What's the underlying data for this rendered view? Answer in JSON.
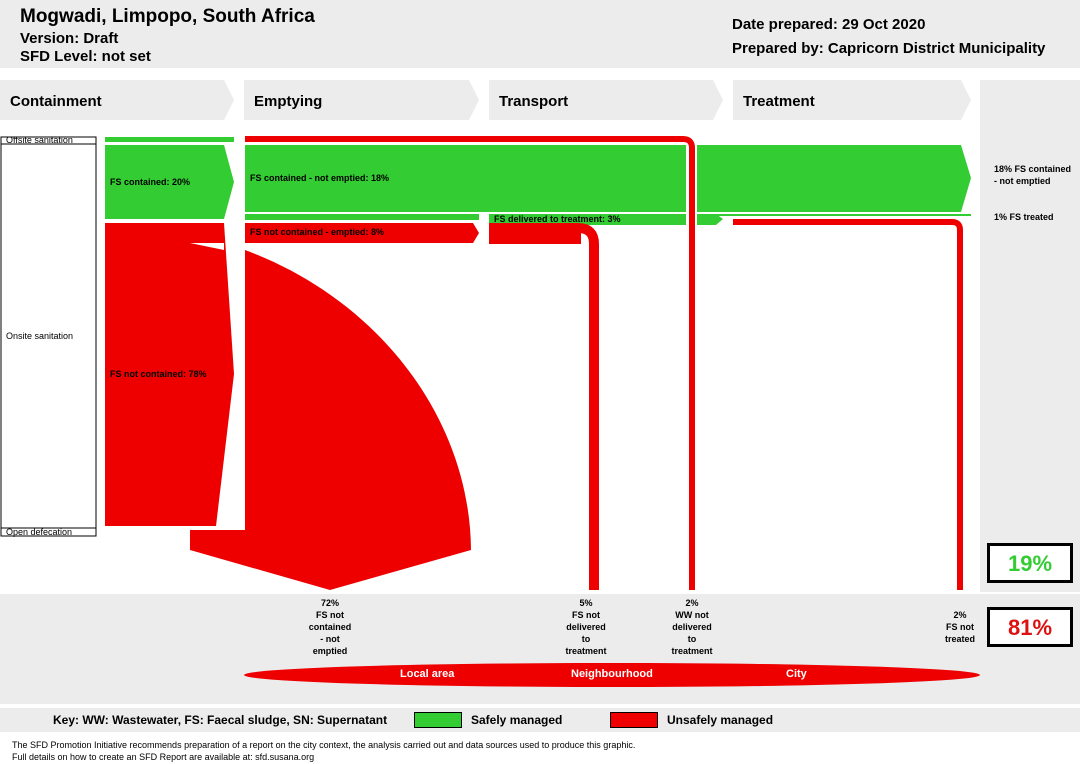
{
  "header": {
    "title": "Mogwadi, Limpopo, South Africa",
    "version": "Version: Draft",
    "sfd_level": "SFD Level: not set",
    "date_prepared": "Date prepared: 29 Oct 2020",
    "prepared_by": "Prepared by: Capricorn District Municipality"
  },
  "stages": [
    "Containment",
    "Emptying",
    "Transport",
    "Treatment"
  ],
  "left_labels": {
    "offsite": "Offsite sanitation",
    "onsite": "Onsite sanitation",
    "open_defecation": "Open defecation"
  },
  "flows": {
    "fs_contained": "FS contained: 20%",
    "fs_not_contained": "FS not contained: 78%",
    "fs_contained_not_emptied": "FS contained - not emptied: 18%",
    "fs_not_contained_emptied": "FS not contained - emptied: 8%",
    "fs_delivered_to_treatment": "FS delivered to treatment: 3%"
  },
  "right_labels": {
    "safe_1": "18% FS contained - not emptied",
    "safe_2": "1% FS treated"
  },
  "outcomes": [
    {
      "pct": "72%",
      "lines": [
        "FS not",
        "contained",
        "- not",
        "emptied"
      ]
    },
    {
      "pct": "5%",
      "lines": [
        "FS not",
        "delivered",
        "to",
        "treatment"
      ]
    },
    {
      "pct": "2%",
      "lines": [
        "WW not",
        "delivered",
        "to",
        "treatment"
      ]
    },
    {
      "pct": "2%",
      "lines": [
        "FS not",
        "treated"
      ]
    }
  ],
  "summary": {
    "safe_pct": "19%",
    "unsafe_pct": "81%",
    "safe_color": "#33cc33",
    "unsafe_color": "#dd1111"
  },
  "areas": [
    "Local area",
    "Neighbourhood",
    "City"
  ],
  "key": {
    "text": "Key: WW: Wastewater, FS: Faecal sludge, SN: Supernatant",
    "safe": "Safely managed",
    "unsafe": "Unsafely managed"
  },
  "footer": {
    "line1": "The SFD Promotion Initiative recommends preparation of a report on the city context, the analysis carried out and data sources used to produce this graphic.",
    "line2": "Full details on how to create an SFD Report are available at: sfd.susana.org"
  }
}
